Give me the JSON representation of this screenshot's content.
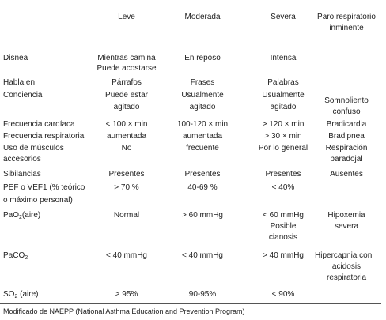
{
  "headers": {
    "mild": "Leve",
    "moderate": "Moderada",
    "severe": "Severa",
    "arrest_l1": "Paro respiratorio",
    "arrest_l2": "inminente"
  },
  "rows": {
    "disnea": {
      "label": "Disnea",
      "mild_l1": "Mientras camina",
      "mild_l2": "Puede acostarse",
      "moderate": "En reposo",
      "severe": "Intensa"
    },
    "habla": {
      "label": "Habla en",
      "mild": "Párrafos",
      "moderate": "Frases",
      "severe": "Palabras"
    },
    "conciencia": {
      "label": "Conciencia",
      "mild_l1": "Puede estar",
      "mild_l2": "agitado",
      "moderate_l1": "Usualmente",
      "moderate_l2": "agitado",
      "severe_l1": "Usualmente",
      "severe_l2": "agitado",
      "arrest_l1": "Somnoliento",
      "arrest_l2": "confuso"
    },
    "fc": {
      "label": "Frecuencia cardíaca",
      "mild": "< 100 × min",
      "moderate": "100-120 × min",
      "severe": "> 120 × min",
      "arrest": "Bradicardia"
    },
    "fr": {
      "label": "Frecuencia respiratoria",
      "mild": "aumentada",
      "moderate": "aumentada",
      "severe": "> 30 × min",
      "arrest": "Bradipnea"
    },
    "musculos": {
      "label_l1": "Uso de músculos",
      "label_l2": "accesorios",
      "mild": "No",
      "moderate": "frecuente",
      "severe": "Por lo general",
      "arrest_l1": "Respiración",
      "arrest_l2": "paradojal"
    },
    "sibilancias": {
      "label": "Sibilancias",
      "mild": "Presentes",
      "moderate": "Presentes",
      "severe": "Presentes",
      "arrest": "Ausentes"
    },
    "pef": {
      "label_l1": "PEF o VEF1 (% teórico",
      "label_l2": "o máximo personal)",
      "mild": "> 70 %",
      "moderate": "40-69 %",
      "severe": "< 40%"
    },
    "pao2": {
      "label_prefix": "PaO",
      "label_sub": "2",
      "label_suffix": "(aire)",
      "mild": "Normal",
      "moderate": "> 60 mmHg",
      "severe_l1": "< 60 mmHg",
      "severe_l2": "Posible",
      "severe_l3": "cianosis",
      "arrest_l1": "Hipoxemia",
      "arrest_l2": "severa"
    },
    "paco2": {
      "label_prefix": "PaCO",
      "label_sub": "2",
      "mild": "< 40 mmHg",
      "moderate": "< 40 mmHg",
      "severe": "> 40 mmHg",
      "arrest_l1": "Hipercapnia con",
      "arrest_l2": "acidosis",
      "arrest_l3": "respiratoria"
    },
    "so2": {
      "label_prefix": "SO",
      "label_sub": "2",
      "label_suffix": " (aire)",
      "mild": "> 95%",
      "moderate": "90-95%",
      "severe": "< 90%"
    }
  },
  "footnote": "Modificado de NAEPP (National Asthma Education and Prevention Program)"
}
